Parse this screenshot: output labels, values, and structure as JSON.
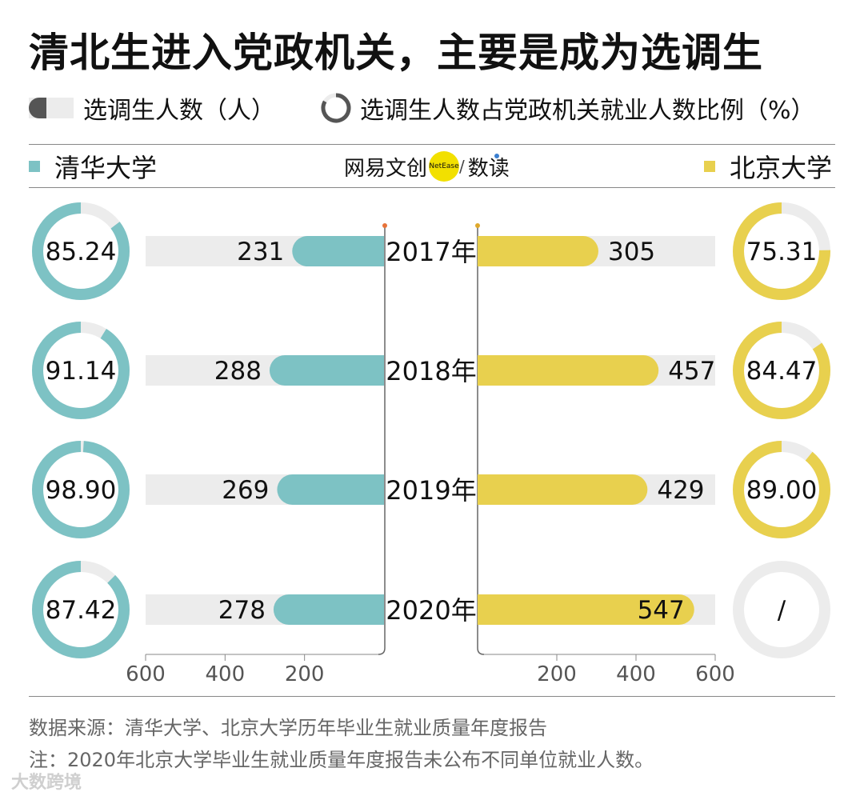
{
  "title": "清北生进入党政机关，主要是成为选调生",
  "legend": {
    "bar_label": "选调生人数（人）",
    "ring_label": "选调生人数占党政机关就业人数比例（%）"
  },
  "brand": {
    "name": "网易文创",
    "dot": "NetEase",
    "slash": "/",
    "section": "数读"
  },
  "footnote": {
    "source": "数据来源：清华大学、北京大学历年毕业生就业质量年度报告",
    "note": "注：2020年北京大学毕业生就业质量年度报告未公布不同单位就业人数。"
  },
  "watermark": "大数跨境",
  "chart_data": {
    "type": "bar",
    "title": "清北生进入党政机关，主要是成为选调生",
    "categories": [
      "2017年",
      "2018年",
      "2019年",
      "2020年"
    ],
    "xlim": [
      0,
      600
    ],
    "ticks": {
      "left": [
        "600",
        "400",
        "200"
      ],
      "right": [
        "200",
        "400",
        "600"
      ]
    },
    "colors": {
      "tsinghua": "#7dc2c4",
      "pku": "#e8d04e",
      "track": "#ececec"
    },
    "series": [
      {
        "name": "清华大学",
        "values": [
          231,
          288,
          269,
          278
        ],
        "value_labels": [
          "231",
          "288",
          "269",
          "278"
        ],
        "ratio": [
          85.24,
          91.14,
          98.9,
          87.42
        ],
        "ratio_labels": [
          "85.24",
          "91.14",
          "98.90",
          "87.42"
        ]
      },
      {
        "name": "北京大学",
        "values": [
          305,
          457,
          429,
          547
        ],
        "value_labels": [
          "305",
          "457",
          "429",
          "547"
        ],
        "ratio": [
          75.31,
          84.47,
          89.0,
          null
        ],
        "ratio_labels": [
          "75.31",
          "84.47",
          "89.00",
          "/"
        ]
      }
    ]
  }
}
